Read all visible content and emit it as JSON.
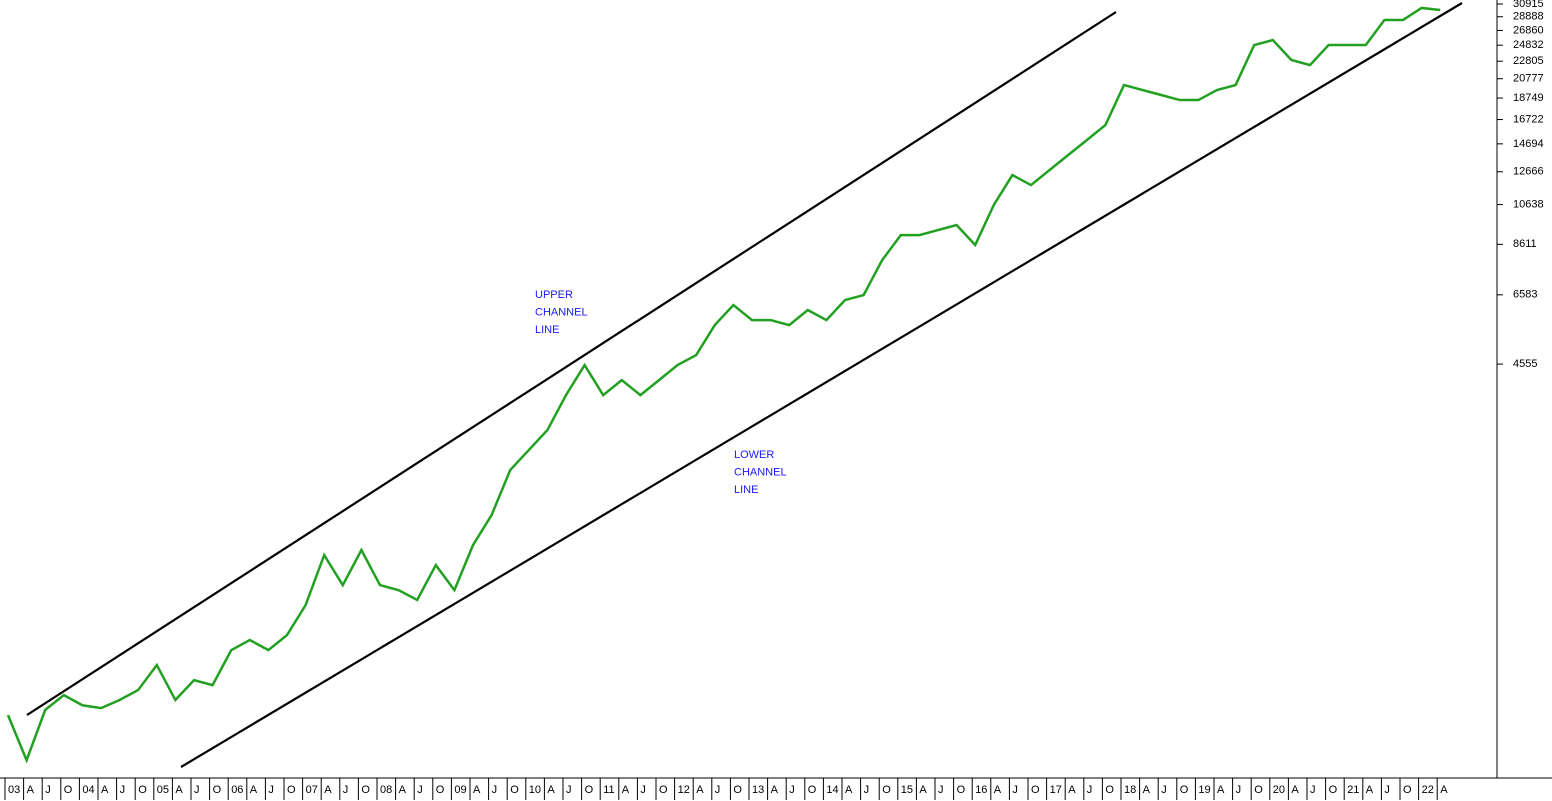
{
  "chart_data": {
    "type": "line",
    "categories": [
      "03",
      "A",
      "J",
      "O",
      "04",
      "A",
      "J",
      "O",
      "05",
      "A",
      "J",
      "O",
      "06",
      "A",
      "J",
      "O",
      "07",
      "A",
      "J",
      "O",
      "08",
      "A",
      "J",
      "O",
      "09",
      "A",
      "J",
      "O",
      "10",
      "A",
      "J",
      "O",
      "11",
      "A",
      "J",
      "O",
      "12",
      "A",
      "J",
      "O",
      "13",
      "A",
      "J",
      "O",
      "14",
      "A",
      "J",
      "O",
      "15",
      "A",
      "J",
      "O",
      "16",
      "A",
      "J",
      "O",
      "17",
      "A",
      "J",
      "O",
      "18",
      "A",
      "J",
      "O",
      "19",
      "A",
      "J",
      "O",
      "20",
      "A",
      "J",
      "O",
      "21",
      "A",
      "J",
      "O",
      "22",
      "A"
    ],
    "series": [
      {
        "color": "#22a022",
        "values": [
          704,
          554,
          724,
          783,
          742,
          731,
          763,
          805,
          919,
          763,
          848,
          826,
          995,
          1050,
          995,
          1078,
          1264,
          1649,
          1406,
          1694,
          1406,
          1369,
          1299,
          1564,
          1369,
          1739,
          2041,
          2592,
          2883,
          3207,
          3862,
          4531,
          3862,
          4183,
          3862,
          4183,
          4531,
          4779,
          5605,
          6234,
          5756,
          5756,
          5605,
          6071,
          5756,
          6401,
          6573,
          7920,
          9046,
          9046,
          9292,
          9541,
          8579,
          10614,
          12447,
          11802,
          12786,
          13848,
          14990,
          16238,
          20092,
          19559,
          19054,
          18548,
          18548,
          19559,
          20092,
          24857,
          25522,
          22953,
          22342,
          24857,
          24857,
          24857,
          28396,
          28396,
          30268,
          29940
        ]
      }
    ],
    "log_scale": true,
    "ylim": [
      504,
      31580
    ],
    "yticks": [
      4555,
      6583,
      8611,
      10638,
      12666,
      14694,
      16722,
      18749,
      20777,
      22805,
      24832,
      26860,
      28888,
      30915
    ],
    "annotations": [
      {
        "text": [
          "UPPER",
          "CHANNEL",
          "LINE"
        ],
        "color": "#1a1aff"
      },
      {
        "text": [
          "LOWER",
          "CHANNEL",
          "LINE"
        ],
        "color": "#1a1aff"
      }
    ]
  }
}
